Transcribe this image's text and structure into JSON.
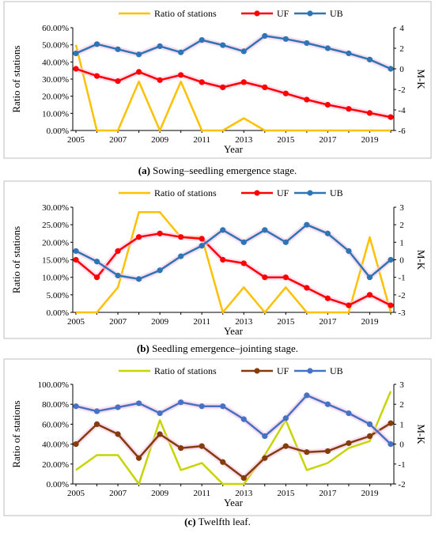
{
  "chart_data": [
    {
      "type": "line",
      "panel": "a",
      "x": [
        2005,
        2006,
        2007,
        2008,
        2009,
        2010,
        2011,
        2012,
        2013,
        2014,
        2015,
        2016,
        2017,
        2018,
        2019,
        2020
      ],
      "xtick_labels": [
        "2005",
        "2007",
        "2009",
        "2011",
        "2013",
        "2015",
        "2017",
        "2019"
      ],
      "xlabel": "Year",
      "ylabel": "Ratio of stations",
      "y2label": "M-K",
      "ylim": [
        0,
        0.6
      ],
      "yticks": [
        "0.00%",
        "10.00%",
        "20.00%",
        "30.00%",
        "40.00%",
        "50.00%",
        "60.00%"
      ],
      "y2lim": [
        -6,
        4
      ],
      "y2ticks": [
        "-6",
        "-4",
        "-2",
        "0",
        "2",
        "4"
      ],
      "caption_bold": "(a)",
      "caption_text": " Sowing–seedling emergence stage.",
      "legend_placement": "top",
      "series": [
        {
          "name": "Ratio of stations",
          "axis": "left",
          "color": "#ffc000",
          "marker": false,
          "values": [
            0.5,
            0,
            0,
            0.2857,
            0,
            0.2857,
            0,
            0,
            0.0714,
            0,
            0,
            0,
            0,
            0,
            0,
            0
          ]
        },
        {
          "name": "UF",
          "axis": "right",
          "color": "#ff0000",
          "marker": true,
          "values": [
            0.0,
            -0.7,
            -1.2,
            -0.3,
            -1.1,
            -0.6,
            -1.3,
            -1.8,
            -1.3,
            -1.8,
            -2.4,
            -3.0,
            -3.5,
            -3.9,
            -4.3,
            -4.7
          ]
        },
        {
          "name": "UB",
          "axis": "right",
          "color": "#2e75b6",
          "marker": true,
          "values": [
            1.5,
            2.4,
            1.9,
            1.4,
            2.2,
            1.6,
            2.8,
            2.3,
            1.7,
            3.2,
            2.9,
            2.5,
            2.0,
            1.5,
            0.9,
            0.0
          ]
        }
      ]
    },
    {
      "type": "line",
      "panel": "b",
      "x": [
        2005,
        2006,
        2007,
        2008,
        2009,
        2010,
        2011,
        2012,
        2013,
        2014,
        2015,
        2016,
        2017,
        2018,
        2019,
        2020
      ],
      "xtick_labels": [
        "2005",
        "2007",
        "2009",
        "2011",
        "2013",
        "2015",
        "2017",
        "2019"
      ],
      "xlabel": "Year",
      "ylabel": "Ratio of stations",
      "y2label": "M-K",
      "ylim": [
        0,
        0.3
      ],
      "yticks": [
        "0.00%",
        "5.00%",
        "10.00%",
        "15.00%",
        "20.00%",
        "25.00%",
        "30.00%"
      ],
      "y2lim": [
        -3,
        3
      ],
      "y2ticks": [
        "-3",
        "-2",
        "-1",
        "0",
        "1",
        "2",
        "3"
      ],
      "caption_bold": "(b)",
      "caption_text": " Seedling emergence–jointing stage.",
      "legend_placement": "top",
      "series": [
        {
          "name": "Ratio of stations",
          "axis": "left",
          "color": "#ffc000",
          "marker": false,
          "values": [
            0,
            0,
            0.0714,
            0.2857,
            0.2857,
            0.2143,
            0.2143,
            0,
            0.0714,
            0,
            0.0714,
            0,
            0,
            0,
            0.2143,
            0
          ]
        },
        {
          "name": "UF",
          "axis": "right",
          "color": "#ff0000",
          "marker": true,
          "values": [
            0.0,
            -1.0,
            0.5,
            1.3,
            1.5,
            1.3,
            1.2,
            0.0,
            -0.2,
            -1.0,
            -1.0,
            -1.6,
            -2.2,
            -2.6,
            -2.0,
            -2.6
          ]
        },
        {
          "name": "UB",
          "axis": "right",
          "color": "#2e75b6",
          "marker": true,
          "values": [
            0.5,
            -0.1,
            -0.9,
            -1.1,
            -0.6,
            0.2,
            0.8,
            1.7,
            1.0,
            1.7,
            1.0,
            2.0,
            1.5,
            0.5,
            -1.0,
            0.0
          ]
        }
      ]
    },
    {
      "type": "line",
      "panel": "c",
      "x": [
        2005,
        2006,
        2007,
        2008,
        2009,
        2010,
        2011,
        2012,
        2013,
        2014,
        2015,
        2016,
        2017,
        2018,
        2019,
        2020
      ],
      "xtick_labels": [
        "2005",
        "2007",
        "2009",
        "2011",
        "2013",
        "2015",
        "2017",
        "2019"
      ],
      "xlabel": "Year",
      "ylabel": "Ratio of stations",
      "y2label": "M-K",
      "ylim": [
        0,
        1.0
      ],
      "yticks": [
        "0.00%",
        "20.00%",
        "40.00%",
        "60.00%",
        "80.00%",
        "100.00%"
      ],
      "y2lim": [
        -2,
        3
      ],
      "y2ticks": [
        "-2",
        "-1",
        "0",
        "1",
        "2",
        "3"
      ],
      "caption_bold": "(c)",
      "caption_text": " Twelfth leaf.",
      "legend_placement": "top",
      "series": [
        {
          "name": "Ratio of stations",
          "axis": "left",
          "color": "#c8d400",
          "marker": false,
          "values": [
            0.14,
            0.29,
            0.29,
            0,
            0.64,
            0.14,
            0.21,
            0,
            0,
            0.29,
            0.64,
            0.14,
            0.21,
            0.36,
            0.43,
            0.93
          ]
        },
        {
          "name": "UF",
          "axis": "right",
          "color": "#843c0c",
          "marker": true,
          "values": [
            0.0,
            1.0,
            0.5,
            -0.7,
            0.5,
            -0.2,
            -0.1,
            -0.9,
            -1.7,
            -0.7,
            -0.1,
            -0.4,
            -0.35,
            0.05,
            0.4,
            1.05
          ]
        },
        {
          "name": "UB",
          "axis": "right",
          "color": "#4472c4",
          "marker": true,
          "values": [
            1.9,
            1.65,
            1.85,
            2.05,
            1.55,
            2.1,
            1.9,
            1.9,
            1.25,
            0.4,
            1.3,
            2.45,
            2.0,
            1.55,
            1.0,
            0.0
          ]
        }
      ]
    }
  ]
}
